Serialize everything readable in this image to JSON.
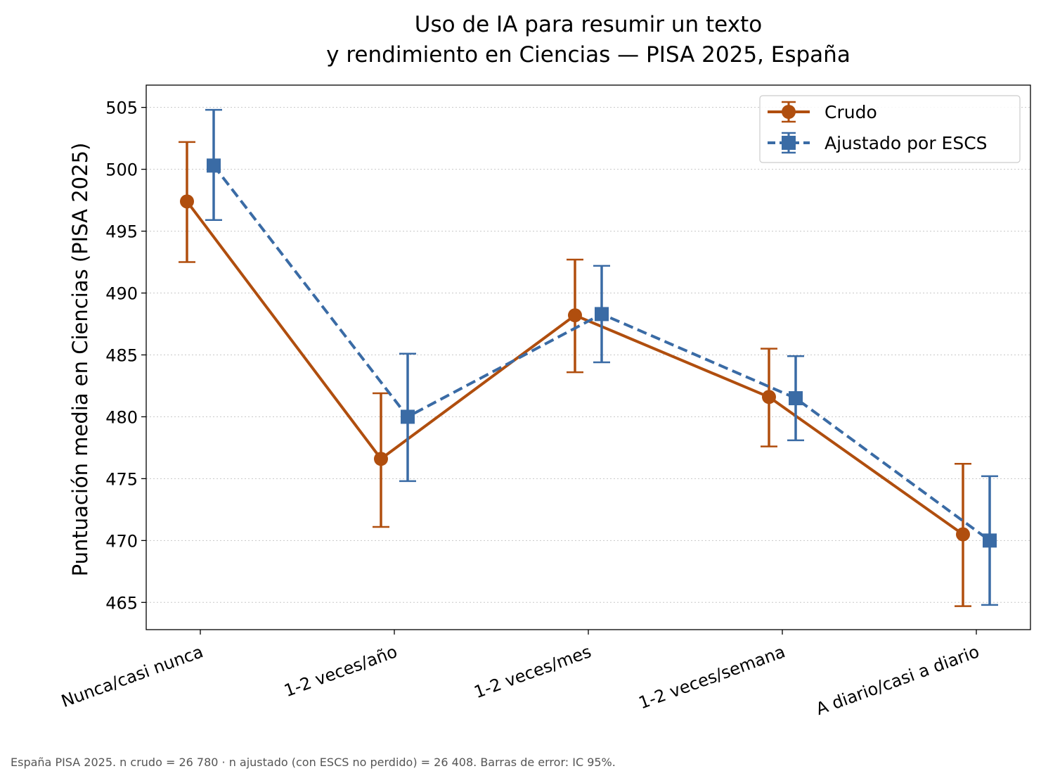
{
  "chart_data": {
    "type": "line",
    "title_lines": [
      "Uso de IA para resumir un texto",
      "y rendimiento en Ciencias — PISA 2025, España"
    ],
    "ylabel": "Puntuación media en Ciencias (PISA 2025)",
    "xlabel": "",
    "categories": [
      "Nunca/casi nunca",
      "1-2 veces/año",
      "1-2 veces/mes",
      "1-2 veces/semana",
      "A diario/casi a diario"
    ],
    "ylim": [
      462.8,
      506.8
    ],
    "yticks": [
      465,
      470,
      475,
      480,
      485,
      490,
      495,
      500,
      505
    ],
    "grid": "horizontal dotted",
    "legend_position": "top-right",
    "series": [
      {
        "name": "Crudo",
        "color": "#b04e0e",
        "line": "solid",
        "marker": "circle",
        "values": [
          497.4,
          476.6,
          488.2,
          481.6,
          470.5
        ],
        "ci_low": [
          492.5,
          471.1,
          483.6,
          477.6,
          464.7
        ],
        "ci_high": [
          502.2,
          481.9,
          492.7,
          485.5,
          476.2
        ]
      },
      {
        "name": "Ajustado por ESCS",
        "color": "#3a6ba5",
        "line": "dashed",
        "marker": "square",
        "values": [
          500.3,
          480.0,
          488.3,
          481.5,
          470.0
        ],
        "ci_low": [
          495.9,
          474.8,
          484.4,
          478.1,
          464.8
        ],
        "ci_high": [
          504.8,
          485.1,
          492.2,
          484.9,
          475.2
        ]
      }
    ]
  },
  "footnote": "España  PISA 2025. n crudo = 26 780 · n ajustado (con ESCS no perdido) = 26 408. Barras de error: IC 95%."
}
